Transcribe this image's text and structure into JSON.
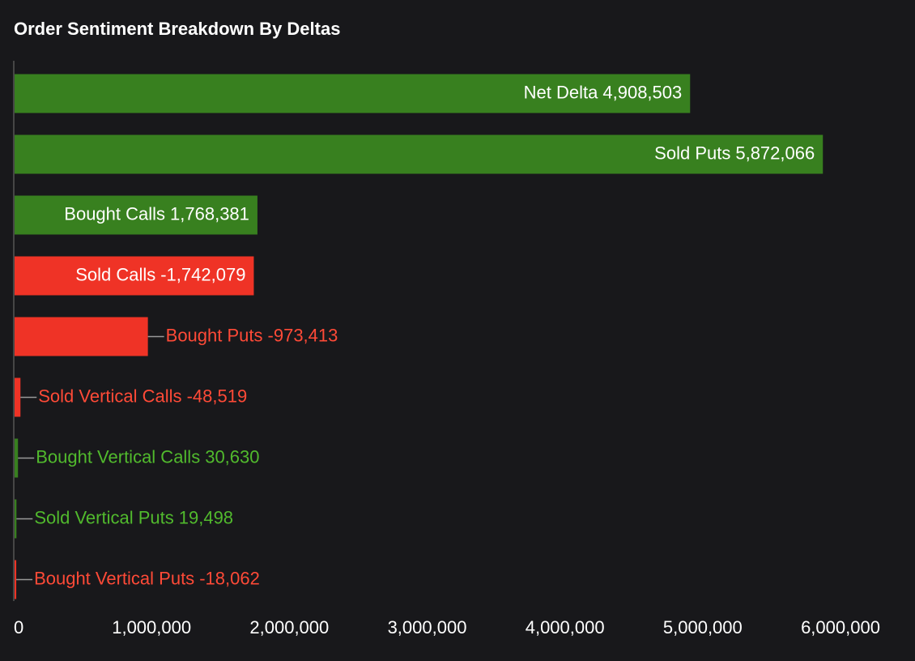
{
  "chart_data": {
    "type": "barh",
    "title": "Order Sentiment Breakdown By Deltas",
    "categories": [
      "Net Delta",
      "Sold Puts",
      "Bought Calls",
      "Sold Calls",
      "Bought Puts",
      "Sold Vertical Calls",
      "Bought Vertical Calls",
      "Sold Vertical Puts",
      "Bought Vertical Puts"
    ],
    "values": [
      4908503,
      5872066,
      1768381,
      -1742079,
      -973413,
      -48519,
      30630,
      19498,
      -18062
    ],
    "value_labels": [
      "4,908,503",
      "5,872,066",
      "1,768,381",
      "-1,742,079",
      "-973,413",
      "-48,519",
      "30,630",
      "19,498",
      "-18,062"
    ],
    "colors": [
      "#38801f",
      "#38801f",
      "#38801f",
      "#ef3326",
      "#ef3326",
      "#ef3326",
      "#38801f",
      "#38801f",
      "#ef3326"
    ],
    "xlim": [
      0,
      6000000
    ],
    "xticks": [
      0,
      {
        "value": 1000000,
        "label": "1,000,000"
      },
      {
        "value": 2000000,
        "label": "2,000,000"
      },
      {
        "value": 3000000,
        "label": "3,000,000"
      },
      {
        "value": 4000000,
        "label": "4,000,000"
      },
      {
        "value": 5000000,
        "label": "5,000,000"
      },
      {
        "value": 6000000,
        "label": "6,000,000"
      }
    ],
    "grid": false
  }
}
